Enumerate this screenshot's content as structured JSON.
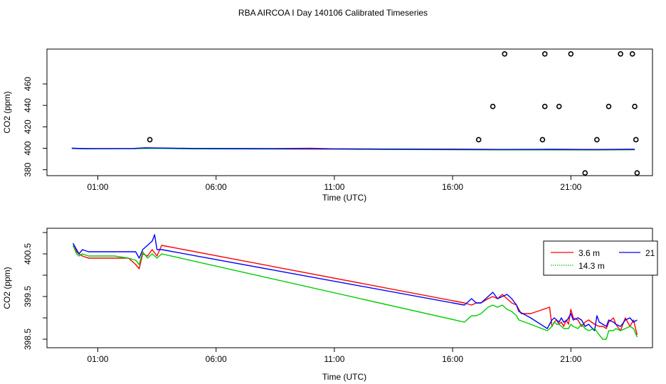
{
  "title": "RBA AIRCOA I  Day 140106  Calibrated Timeseries",
  "chart_data": [
    {
      "type": "scatter",
      "xlabel": "Time (UTC)",
      "ylabel": "CO2 (ppm)",
      "xlim": [
        -1.15,
        24.45
      ],
      "ylim": [
        374.5,
        492.5
      ],
      "xticks": [
        {
          "v": 1,
          "label": "01:00"
        },
        {
          "v": 6,
          "label": "06:00"
        },
        {
          "v": 11,
          "label": "11:00"
        },
        {
          "v": 16,
          "label": "16:00"
        },
        {
          "v": 21,
          "label": "21:00"
        }
      ],
      "yticks": [
        {
          "v": 380,
          "label": "380"
        },
        {
          "v": 400,
          "label": "400"
        },
        {
          "v": 420,
          "label": "420"
        },
        {
          "v": 440,
          "label": "440"
        },
        {
          "v": 460,
          "label": "460"
        }
      ],
      "grid": false,
      "series": [
        {
          "color": "#ff0000",
          "points": [
            [
              -0.1,
              400.0
            ],
            [
              0.5,
              399.6
            ],
            [
              2.5,
              399.7
            ],
            [
              3.0,
              400.1
            ],
            [
              3.5,
              400.0
            ],
            [
              5,
              399.8
            ],
            [
              8,
              399.6
            ],
            [
              10,
              400.0
            ],
            [
              11,
              399.5
            ],
            [
              13,
              399.3
            ],
            [
              16,
              399.2
            ],
            [
              18,
              398.9
            ],
            [
              20,
              399.0
            ],
            [
              22,
              398.9
            ],
            [
              23.7,
              399.0
            ]
          ]
        },
        {
          "color": "#00cc00",
          "points": [
            [
              -0.1,
              399.8
            ],
            [
              0.5,
              399.5
            ],
            [
              2.5,
              399.6
            ],
            [
              3.0,
              399.8
            ],
            [
              3.5,
              399.9
            ],
            [
              5,
              399.4
            ],
            [
              8,
              399.3
            ],
            [
              11,
              399.2
            ],
            [
              13,
              398.9
            ],
            [
              16,
              398.6
            ],
            [
              18,
              398.5
            ],
            [
              20,
              398.5
            ],
            [
              22,
              398.4
            ],
            [
              23.7,
              398.6
            ]
          ]
        },
        {
          "color": "#0000ff",
          "points": [
            [
              -0.1,
              400.0
            ],
            [
              0.5,
              399.7
            ],
            [
              2.5,
              399.8
            ],
            [
              3.0,
              400.5
            ],
            [
              3.5,
              400.3
            ],
            [
              5,
              399.9
            ],
            [
              8,
              399.7
            ],
            [
              11,
              399.4
            ],
            [
              13,
              399.2
            ],
            [
              16,
              399.1
            ],
            [
              18,
              398.9
            ],
            [
              20,
              399.0
            ],
            [
              22,
              398.8
            ],
            [
              23.7,
              399.0
            ]
          ]
        }
      ],
      "outliers": [
        {
          "x": 3.2,
          "y": 408
        },
        {
          "x": 17.1,
          "y": 408
        },
        {
          "x": 17.7,
          "y": 439
        },
        {
          "x": 18.2,
          "y": 488
        },
        {
          "x": 19.8,
          "y": 408
        },
        {
          "x": 19.9,
          "y": 439
        },
        {
          "x": 19.9,
          "y": 488
        },
        {
          "x": 20.5,
          "y": 439
        },
        {
          "x": 21.0,
          "y": 488
        },
        {
          "x": 21.6,
          "y": 377
        },
        {
          "x": 22.1,
          "y": 408
        },
        {
          "x": 22.6,
          "y": 439
        },
        {
          "x": 23.1,
          "y": 488
        },
        {
          "x": 23.6,
          "y": 488
        },
        {
          "x": 23.7,
          "y": 439
        },
        {
          "x": 23.75,
          "y": 408
        },
        {
          "x": 23.8,
          "y": 377
        }
      ]
    },
    {
      "type": "line",
      "xlabel": "Time (UTC)",
      "ylabel": "CO2 (ppm)",
      "xlim": [
        -1.15,
        24.45
      ],
      "ylim": [
        398.3,
        401.1
      ],
      "xticks": [
        {
          "v": 1,
          "label": "01:00"
        },
        {
          "v": 6,
          "label": "06:00"
        },
        {
          "v": 11,
          "label": "11:00"
        },
        {
          "v": 16,
          "label": "16:00"
        },
        {
          "v": 21,
          "label": "21:00"
        }
      ],
      "yticks": [
        {
          "v": 398.5,
          "label": "398.5"
        },
        {
          "v": 399.5,
          "label": "399.5"
        },
        {
          "v": 400.5,
          "label": "400.5"
        }
      ],
      "ytick_minor": [
        399.0,
        400.0,
        401.0
      ],
      "grid": false,
      "legend_position": "top-right",
      "legend_entries": [
        {
          "name": "3.6 m",
          "color": "#ff0000"
        },
        {
          "name": "21",
          "color": "#0000ff"
        },
        {
          "name": "14.3 m",
          "color": "#00cc00"
        }
      ],
      "series": [
        {
          "name": "3.6 m",
          "color": "#ff0000",
          "points": [
            [
              -0.05,
              400.7
            ],
            [
              0.1,
              400.55
            ],
            [
              0.2,
              400.5
            ],
            [
              0.35,
              400.45
            ],
            [
              0.6,
              400.4
            ],
            [
              1.0,
              400.4
            ],
            [
              1.7,
              400.4
            ],
            [
              2.3,
              400.4
            ],
            [
              2.6,
              400.25
            ],
            [
              2.75,
              400.15
            ],
            [
              2.9,
              400.5
            ],
            [
              3.1,
              400.45
            ],
            [
              3.3,
              400.6
            ],
            [
              3.5,
              400.45
            ],
            [
              3.7,
              400.7
            ],
            [
              16.5,
              399.35
            ],
            [
              16.8,
              399.3
            ],
            [
              17.0,
              399.35
            ],
            [
              17.2,
              399.35
            ],
            [
              17.5,
              399.45
            ],
            [
              17.7,
              399.5
            ],
            [
              17.9,
              399.45
            ],
            [
              18.1,
              399.55
            ],
            [
              18.3,
              399.45
            ],
            [
              18.5,
              399.35
            ],
            [
              18.7,
              399.3
            ],
            [
              18.9,
              399.1
            ],
            [
              19.3,
              399.1
            ],
            [
              20.1,
              399.25
            ],
            [
              20.2,
              398.8
            ],
            [
              20.3,
              398.9
            ],
            [
              20.4,
              398.95
            ],
            [
              20.5,
              398.85
            ],
            [
              20.6,
              398.9
            ],
            [
              20.7,
              398.8
            ],
            [
              20.8,
              398.95
            ],
            [
              20.9,
              398.85
            ],
            [
              21.0,
              399.2
            ],
            [
              21.1,
              399.0
            ],
            [
              21.3,
              398.95
            ],
            [
              21.45,
              398.8
            ],
            [
              21.6,
              398.9
            ],
            [
              21.75,
              398.95
            ],
            [
              22.0,
              398.85
            ],
            [
              22.2,
              398.8
            ],
            [
              22.35,
              398.8
            ],
            [
              22.5,
              398.75
            ],
            [
              22.6,
              398.9
            ],
            [
              22.8,
              399.0
            ],
            [
              22.9,
              398.85
            ],
            [
              23.1,
              398.7
            ],
            [
              23.3,
              399.0
            ],
            [
              23.5,
              398.8
            ],
            [
              23.65,
              398.95
            ],
            [
              23.8,
              398.6
            ]
          ]
        },
        {
          "name": "21",
          "color": "#0000ff",
          "points": [
            [
              -0.05,
              400.75
            ],
            [
              0.1,
              400.6
            ],
            [
              0.2,
              400.5
            ],
            [
              0.35,
              400.6
            ],
            [
              0.6,
              400.55
            ],
            [
              1.0,
              400.55
            ],
            [
              1.7,
              400.55
            ],
            [
              2.3,
              400.55
            ],
            [
              2.6,
              400.55
            ],
            [
              2.75,
              400.4
            ],
            [
              2.9,
              400.6
            ],
            [
              3.1,
              400.7
            ],
            [
              3.3,
              400.8
            ],
            [
              3.4,
              400.95
            ],
            [
              3.5,
              400.6
            ],
            [
              3.7,
              400.6
            ],
            [
              16.5,
              399.3
            ],
            [
              16.7,
              399.4
            ],
            [
              16.8,
              399.45
            ],
            [
              17.0,
              399.35
            ],
            [
              17.2,
              399.35
            ],
            [
              17.5,
              399.5
            ],
            [
              17.7,
              399.6
            ],
            [
              17.9,
              399.45
            ],
            [
              18.1,
              399.5
            ],
            [
              18.3,
              399.55
            ],
            [
              18.5,
              399.45
            ],
            [
              18.7,
              399.3
            ],
            [
              18.8,
              399.15
            ],
            [
              19.3,
              399.0
            ],
            [
              20.0,
              398.75
            ],
            [
              20.2,
              398.95
            ],
            [
              20.3,
              399.0
            ],
            [
              20.4,
              398.95
            ],
            [
              20.5,
              398.9
            ],
            [
              20.6,
              399.0
            ],
            [
              20.7,
              398.9
            ],
            [
              20.85,
              398.95
            ],
            [
              21.0,
              399.1
            ],
            [
              21.1,
              398.95
            ],
            [
              21.3,
              399.0
            ],
            [
              21.45,
              398.95
            ],
            [
              21.6,
              398.8
            ],
            [
              21.75,
              398.85
            ],
            [
              22.0,
              398.7
            ],
            [
              22.1,
              399.05
            ],
            [
              22.2,
              398.9
            ],
            [
              22.35,
              398.85
            ],
            [
              22.5,
              398.8
            ],
            [
              22.6,
              398.95
            ],
            [
              22.8,
              398.9
            ],
            [
              22.9,
              398.85
            ],
            [
              23.1,
              398.8
            ],
            [
              23.3,
              398.95
            ],
            [
              23.5,
              399.0
            ],
            [
              23.65,
              398.9
            ],
            [
              23.8,
              398.95
            ]
          ]
        },
        {
          "name": "14.3 m",
          "color": "#00cc00",
          "points": [
            [
              -0.05,
              400.7
            ],
            [
              0.1,
              400.5
            ],
            [
              0.2,
              400.45
            ],
            [
              0.35,
              400.5
            ],
            [
              0.6,
              400.45
            ],
            [
              1.0,
              400.45
            ],
            [
              1.7,
              400.45
            ],
            [
              2.3,
              400.4
            ],
            [
              2.6,
              400.35
            ],
            [
              2.75,
              400.25
            ],
            [
              2.9,
              400.55
            ],
            [
              3.1,
              400.4
            ],
            [
              3.3,
              400.5
            ],
            [
              3.5,
              400.4
            ],
            [
              3.7,
              400.5
            ],
            [
              16.5,
              398.9
            ],
            [
              16.7,
              399.0
            ],
            [
              16.8,
              399.05
            ],
            [
              17.0,
              399.05
            ],
            [
              17.2,
              399.1
            ],
            [
              17.5,
              399.25
            ],
            [
              17.7,
              399.3
            ],
            [
              17.9,
              399.25
            ],
            [
              18.1,
              399.3
            ],
            [
              18.3,
              399.2
            ],
            [
              18.5,
              399.15
            ],
            [
              18.7,
              399.05
            ],
            [
              18.8,
              398.95
            ],
            [
              19.3,
              398.85
            ],
            [
              20.0,
              398.7
            ],
            [
              20.2,
              398.8
            ],
            [
              20.3,
              398.9
            ],
            [
              20.4,
              398.85
            ],
            [
              20.5,
              398.85
            ],
            [
              20.6,
              398.8
            ],
            [
              20.7,
              398.75
            ],
            [
              20.9,
              398.75
            ],
            [
              21.0,
              398.85
            ],
            [
              21.1,
              398.8
            ],
            [
              21.3,
              398.75
            ],
            [
              21.45,
              398.85
            ],
            [
              21.6,
              398.75
            ],
            [
              21.75,
              398.7
            ],
            [
              22.0,
              398.75
            ],
            [
              22.2,
              398.6
            ],
            [
              22.35,
              398.5
            ],
            [
              22.5,
              398.5
            ],
            [
              22.6,
              398.7
            ],
            [
              22.8,
              398.7
            ],
            [
              22.9,
              398.75
            ],
            [
              23.1,
              398.7
            ],
            [
              23.3,
              398.75
            ],
            [
              23.5,
              398.8
            ],
            [
              23.65,
              398.75
            ],
            [
              23.8,
              398.55
            ]
          ]
        }
      ]
    }
  ]
}
